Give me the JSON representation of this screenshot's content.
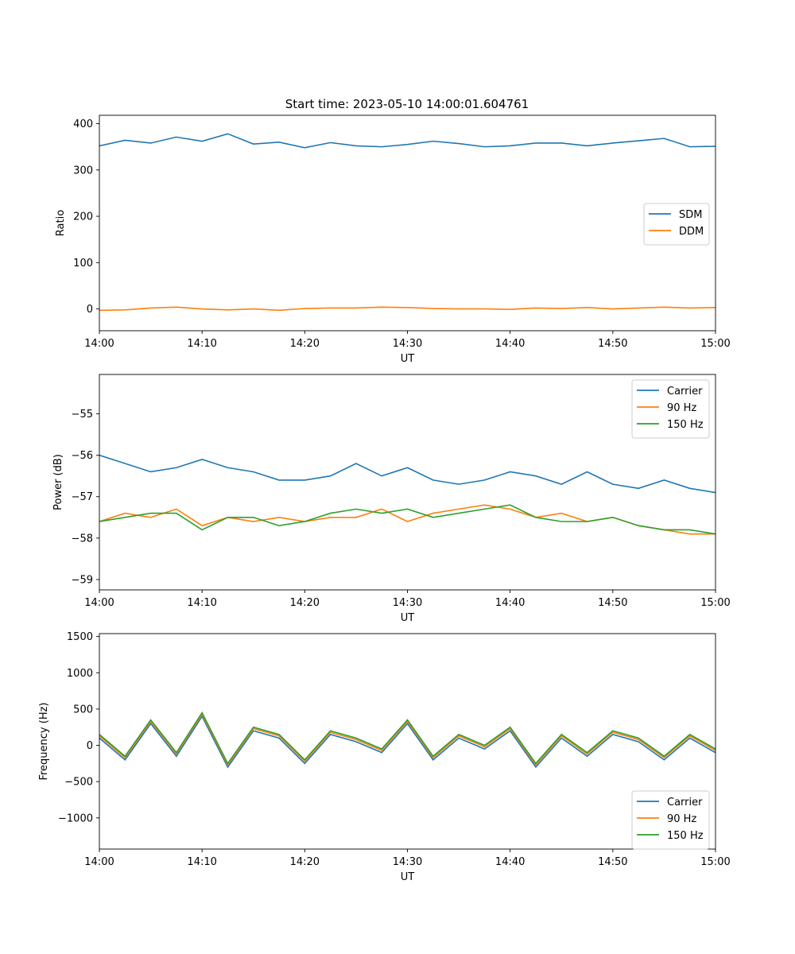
{
  "figure_title": "Start time: 2023-05-10 14:00:01.604761",
  "colors": {
    "blue": "#1f77b4",
    "orange": "#ff7f0e",
    "green": "#2ca02c"
  },
  "chart_data": [
    {
      "type": "line",
      "title": "Start time: 2023-05-10 14:00:01.604761",
      "xlabel": "UT",
      "ylabel": "Ratio",
      "xlim": [
        "14:00",
        "15:00"
      ],
      "ylim": [
        -47,
        418
      ],
      "xticks": [
        "14:00",
        "14:10",
        "14:20",
        "14:30",
        "14:40",
        "14:50",
        "15:00"
      ],
      "yticks": [
        0,
        100,
        200,
        300,
        400
      ],
      "legend_position": "center-right",
      "x_step_minutes": 5,
      "series": [
        {
          "name": "SDM",
          "color": "#1f77b4",
          "values": [
            352,
            364,
            358,
            371,
            362,
            378,
            356,
            360,
            348,
            359,
            352,
            350,
            355,
            362,
            357,
            350,
            352,
            358,
            358,
            352,
            358,
            363,
            368,
            350,
            351
          ]
        },
        {
          "name": "DDM",
          "color": "#ff7f0e",
          "values": [
            -3,
            -2,
            2,
            4,
            0,
            -2,
            0,
            -3,
            1,
            2,
            2,
            4,
            3,
            1,
            0,
            0,
            -1,
            2,
            1,
            3,
            0,
            2,
            4,
            2,
            3
          ]
        }
      ]
    },
    {
      "type": "line",
      "xlabel": "UT",
      "ylabel": "Power (dB)",
      "xlim": [
        "14:00",
        "15:00"
      ],
      "ylim": [
        -59.25,
        -54.05
      ],
      "xticks": [
        "14:00",
        "14:10",
        "14:20",
        "14:30",
        "14:40",
        "14:50",
        "15:00"
      ],
      "yticks": [
        -59,
        -58,
        -57,
        -56,
        -55
      ],
      "legend_position": "upper-right",
      "x_step_minutes": 5,
      "series": [
        {
          "name": "Carrier",
          "color": "#1f77b4",
          "values": [
            -56.0,
            -56.2,
            -56.4,
            -56.3,
            -56.1,
            -56.3,
            -56.4,
            -56.6,
            -56.6,
            -56.5,
            -56.2,
            -56.5,
            -56.3,
            -56.6,
            -56.7,
            -56.6,
            -56.4,
            -56.5,
            -56.7,
            -56.4,
            -56.7,
            -56.8,
            -56.6,
            -56.8,
            -56.9
          ]
        },
        {
          "name": "90 Hz",
          "color": "#ff7f0e",
          "values": [
            -57.6,
            -57.4,
            -57.5,
            -57.3,
            -57.7,
            -57.5,
            -57.6,
            -57.5,
            -57.6,
            -57.5,
            -57.5,
            -57.3,
            -57.6,
            -57.4,
            -57.3,
            -57.2,
            -57.3,
            -57.5,
            -57.4,
            -57.6,
            -57.5,
            -57.7,
            -57.8,
            -57.9,
            -57.9
          ]
        },
        {
          "name": "150 Hz",
          "color": "#2ca02c",
          "values": [
            -57.6,
            -57.5,
            -57.4,
            -57.4,
            -57.8,
            -57.5,
            -57.5,
            -57.7,
            -57.6,
            -57.4,
            -57.3,
            -57.4,
            -57.3,
            -57.5,
            -57.4,
            -57.3,
            -57.2,
            -57.5,
            -57.6,
            -57.6,
            -57.5,
            -57.7,
            -57.8,
            -57.8,
            -57.9
          ]
        }
      ]
    },
    {
      "type": "line",
      "xlabel": "UT",
      "ylabel": "Frequency (Hz)",
      "xlim": [
        "14:00",
        "15:00"
      ],
      "ylim": [
        -1430,
        1540
      ],
      "xticks": [
        "14:00",
        "14:10",
        "14:20",
        "14:30",
        "14:40",
        "14:50",
        "15:00"
      ],
      "yticks": [
        -1000,
        -500,
        0,
        500,
        1000,
        1500
      ],
      "legend_position": "lower-right",
      "x_step_minutes": 5,
      "series": [
        {
          "name": "Carrier",
          "color": "#1f77b4",
          "values": [
            100,
            -200,
            300,
            -150,
            400,
            -300,
            200,
            100,
            -250,
            150,
            50,
            -100,
            300,
            -200,
            100,
            -50,
            200,
            -300,
            100,
            -150,
            150,
            50,
            -200,
            100,
            -100
          ]
        },
        {
          "name": "90 Hz",
          "color": "#ff7f0e",
          "values": [
            130,
            -170,
            330,
            -120,
            430,
            -270,
            230,
            130,
            -220,
            180,
            80,
            -70,
            330,
            -170,
            130,
            -20,
            230,
            -270,
            130,
            -120,
            180,
            80,
            -170,
            130,
            -70
          ]
        },
        {
          "name": "150 Hz",
          "color": "#2ca02c",
          "values": [
            150,
            -150,
            350,
            -100,
            450,
            -250,
            250,
            150,
            -200,
            200,
            100,
            -50,
            350,
            -150,
            150,
            0,
            250,
            -250,
            150,
            -100,
            200,
            100,
            -150,
            150,
            -50
          ]
        }
      ]
    }
  ]
}
